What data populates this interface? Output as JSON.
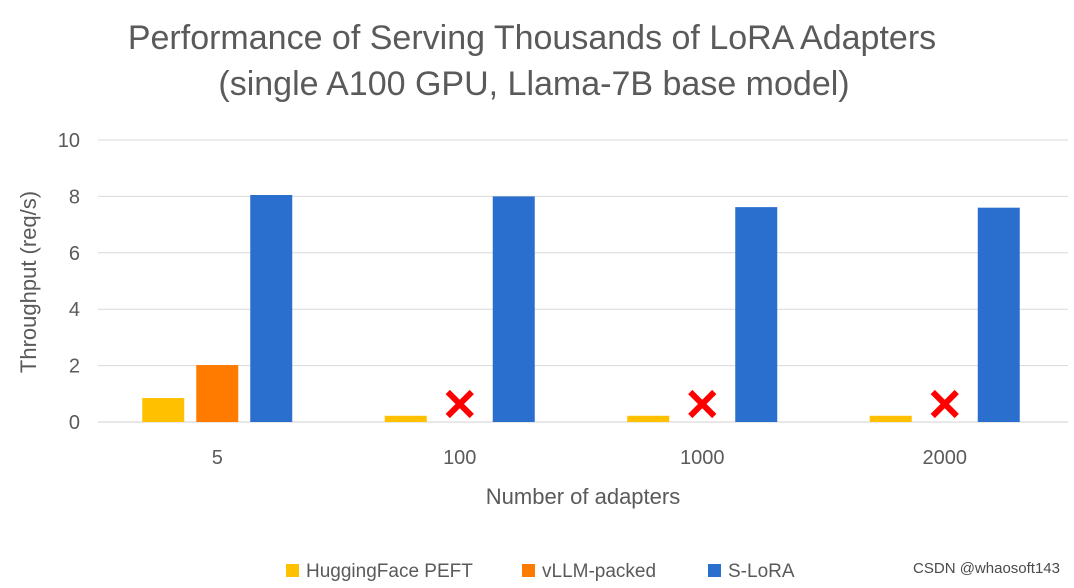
{
  "chart_data": {
    "type": "bar",
    "title_lines": [
      "Performance of Serving Thousands of LoRA Adapters",
      "(single A100 GPU, Llama-7B base model)"
    ],
    "xlabel": "Number of adapters",
    "ylabel": "Throughput (req/s)",
    "categories": [
      "5",
      "100",
      "1000",
      "2000"
    ],
    "ylim": [
      0,
      10
    ],
    "yticks": [
      0,
      2,
      4,
      6,
      8,
      10
    ],
    "grid": true,
    "legend_position": "bottom",
    "series": [
      {
        "name": "HuggingFace PEFT",
        "color": "#ffc000",
        "values": [
          0.85,
          0.22,
          0.22,
          0.22
        ]
      },
      {
        "name": "vLLM-packed",
        "color": "#ff7b00",
        "values": [
          2.02,
          null,
          null,
          null
        ],
        "missing_marker": "x"
      },
      {
        "name": "S-LoRA",
        "color": "#2b6fce",
        "values": [
          8.05,
          8.0,
          7.62,
          7.6
        ]
      }
    ],
    "missing_marker_color": "#ff0000"
  },
  "watermark": "CSDN @whaosoft143"
}
